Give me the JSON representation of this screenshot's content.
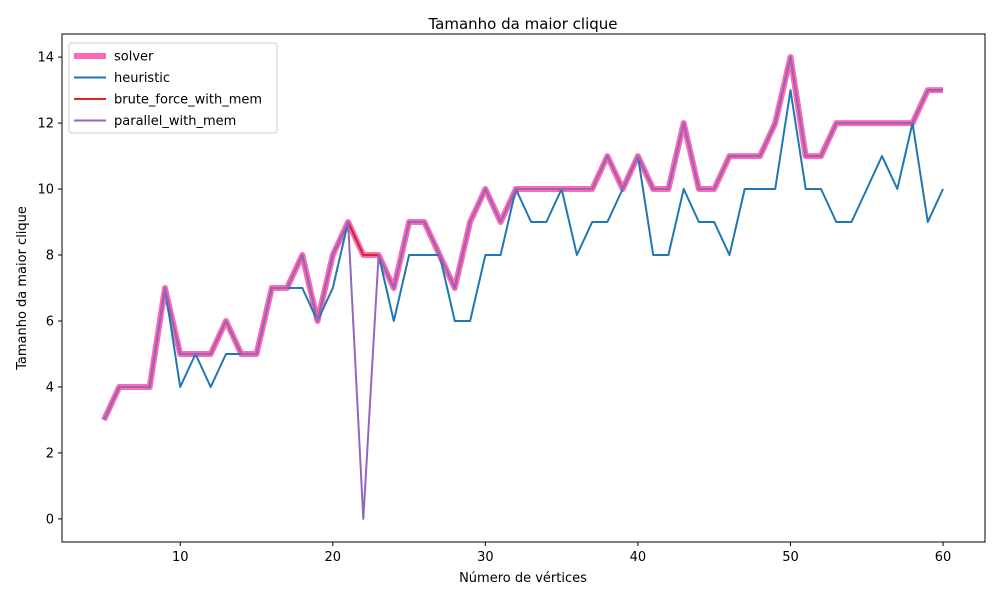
{
  "chart_data": {
    "type": "line",
    "title": "Tamanho da maior clique",
    "xlabel": "Número de vértices",
    "ylabel": "Tamanho da maior clique",
    "xlim": [
      2.25,
      62.75
    ],
    "ylim": [
      -0.7,
      14.7
    ],
    "xticks": [
      10,
      20,
      30,
      40,
      50,
      60
    ],
    "yticks": [
      0,
      2,
      4,
      6,
      8,
      10,
      12,
      14
    ],
    "xtick_labels": [
      "10",
      "20",
      "30",
      "40",
      "50",
      "60"
    ],
    "ytick_labels": [
      "0",
      "2",
      "4",
      "6",
      "8",
      "10",
      "12",
      "14"
    ],
    "grid": false,
    "legend_position": "top-left",
    "x": [
      5,
      6,
      7,
      8,
      9,
      10,
      11,
      12,
      13,
      14,
      15,
      16,
      17,
      18,
      19,
      20,
      21,
      22,
      23,
      24,
      25,
      26,
      27,
      28,
      29,
      30,
      31,
      32,
      33,
      34,
      35,
      36,
      37,
      38,
      39,
      40,
      41,
      42,
      43,
      44,
      45,
      46,
      47,
      48,
      49,
      50,
      51,
      52,
      53,
      54,
      55,
      56,
      57,
      58,
      59,
      60
    ],
    "series": [
      {
        "name": "solver",
        "color": "#ff69b4",
        "values": [
          3,
          4,
          4,
          4,
          7,
          5,
          5,
          5,
          6,
          5,
          5,
          7,
          7,
          8,
          6,
          8,
          9,
          8,
          8,
          7,
          9,
          9,
          8,
          7,
          9,
          10,
          9,
          10,
          10,
          10,
          10,
          10,
          10,
          11,
          10,
          11,
          10,
          10,
          12,
          10,
          10,
          11,
          11,
          11,
          12,
          14,
          11,
          11,
          12,
          12,
          12,
          12,
          12,
          12,
          13,
          13
        ]
      },
      {
        "name": "heuristic",
        "color": "#1f77b4",
        "values": [
          3,
          4,
          4,
          4,
          7,
          4,
          5,
          4,
          5,
          5,
          5,
          7,
          7,
          7,
          6,
          7,
          9,
          8,
          8,
          6,
          8,
          8,
          8,
          6,
          6,
          8,
          8,
          10,
          9,
          9,
          10,
          8,
          9,
          9,
          10,
          11,
          8,
          8,
          10,
          9,
          9,
          8,
          10,
          10,
          10,
          13,
          10,
          10,
          9,
          9,
          10,
          11,
          10,
          12,
          9,
          10
        ]
      },
      {
        "name": "brute_force_with_mem",
        "color": "#d62728",
        "values": [
          3,
          4,
          4,
          4,
          7,
          5,
          5,
          5,
          6,
          5,
          5,
          7,
          7,
          8,
          6,
          8,
          9,
          8,
          8,
          7,
          9,
          9,
          8,
          7,
          9,
          10,
          9,
          10,
          10,
          10,
          10,
          10,
          10,
          11,
          10,
          11,
          10,
          10,
          12,
          10,
          10,
          11,
          11,
          11,
          12,
          14,
          11,
          11,
          12,
          12,
          12,
          12,
          12,
          12,
          13,
          13
        ]
      },
      {
        "name": "parallel_with_mem",
        "color": "#9467bd",
        "values": [
          3,
          4,
          4,
          4,
          7,
          5,
          5,
          5,
          6,
          5,
          5,
          7,
          7,
          8,
          6,
          8,
          9,
          0,
          8,
          7,
          9,
          9,
          8,
          7,
          9,
          10,
          9,
          10,
          10,
          10,
          10,
          10,
          10,
          11,
          10,
          11,
          10,
          10,
          12,
          10,
          10,
          11,
          11,
          11,
          12,
          14,
          11,
          11,
          12,
          12,
          12,
          12,
          12,
          12,
          13,
          13
        ]
      }
    ]
  }
}
